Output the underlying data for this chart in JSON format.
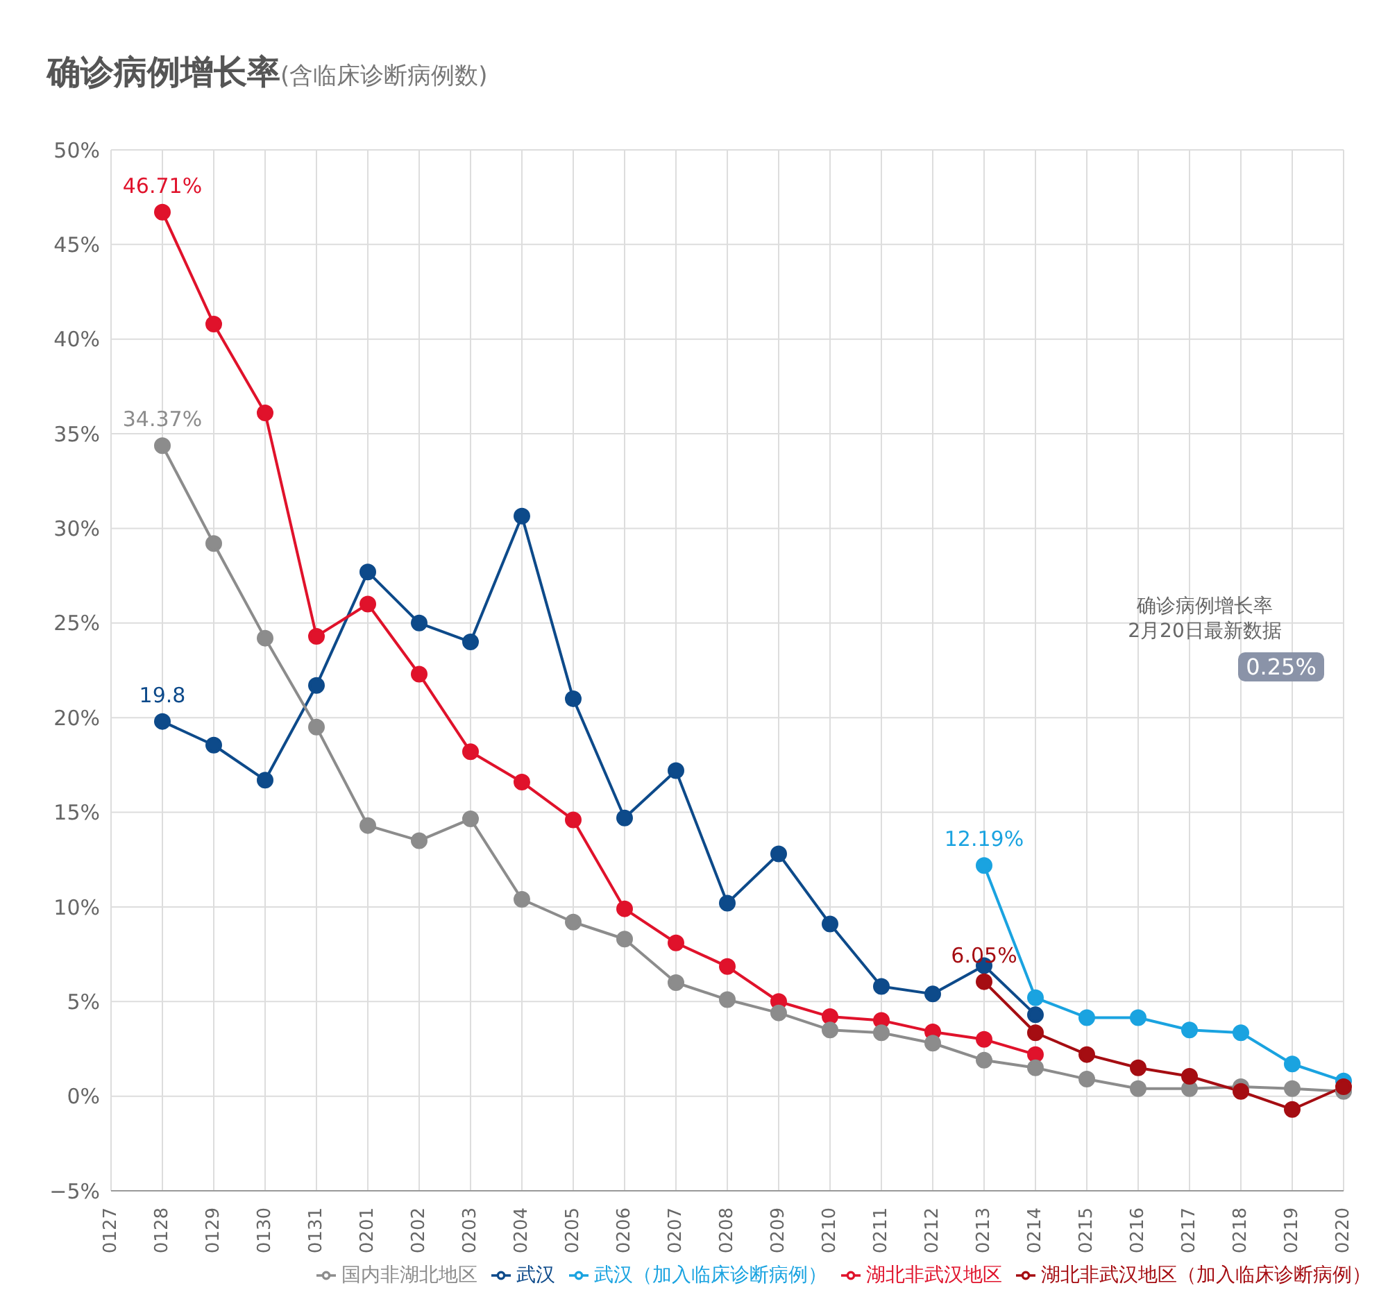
{
  "chart_data": {
    "type": "line",
    "title": "确诊病例增长率",
    "subtitle": "(含临床诊断病例数)",
    "categories": [
      "0127",
      "0128",
      "0129",
      "0130",
      "0131",
      "0201",
      "0202",
      "0203",
      "0204",
      "0205",
      "0206",
      "0207",
      "0208",
      "0209",
      "0210",
      "0211",
      "0212",
      "0213",
      "0214",
      "0215",
      "0216",
      "0217",
      "0218",
      "0219",
      "0220"
    ],
    "series": [
      {
        "name": "武汉",
        "color": "#0d4a8a",
        "values": [
          null,
          19.8,
          18.55,
          16.7,
          21.7,
          27.7,
          25.0,
          24.0,
          30.65,
          21.0,
          14.7,
          17.2,
          10.2,
          12.8,
          9.1,
          5.8,
          5.4,
          6.9,
          4.3,
          null,
          null,
          null,
          null,
          null,
          null
        ],
        "value_labels": [
          null,
          "19.8",
          null,
          null,
          null,
          null,
          null,
          null,
          null,
          null,
          null,
          null,
          null,
          null,
          null,
          null,
          null,
          null,
          null,
          null,
          null,
          null,
          null,
          null,
          null
        ]
      },
      {
        "name": "湖北非武汉地区",
        "color": "#e0122b",
        "values": [
          null,
          46.71,
          40.8,
          36.1,
          24.3,
          26.0,
          22.3,
          18.2,
          16.6,
          14.6,
          9.9,
          8.1,
          6.85,
          5.0,
          4.2,
          4.0,
          3.4,
          3.0,
          2.2,
          null,
          null,
          null,
          null,
          null,
          null
        ],
        "value_labels": [
          null,
          "46.71%",
          null,
          null,
          null,
          null,
          null,
          null,
          null,
          null,
          null,
          null,
          null,
          null,
          null,
          null,
          null,
          null,
          null,
          null,
          null,
          null,
          null,
          null,
          null
        ]
      },
      {
        "name": "国内非湖北地区",
        "color": "#8c8c8c",
        "values": [
          null,
          34.37,
          29.2,
          24.2,
          19.5,
          14.3,
          13.5,
          14.65,
          10.4,
          9.2,
          8.3,
          6.0,
          5.1,
          4.4,
          3.5,
          3.35,
          2.8,
          1.9,
          1.5,
          0.9,
          0.4,
          0.4,
          0.5,
          0.4,
          0.25
        ],
        "value_labels": [
          null,
          "34.37%",
          null,
          null,
          null,
          null,
          null,
          null,
          null,
          null,
          null,
          null,
          null,
          null,
          null,
          null,
          null,
          null,
          null,
          null,
          null,
          null,
          null,
          null,
          null
        ]
      },
      {
        "name": "武汉（加入临床诊断病例）",
        "color": "#1aa3e0",
        "values": [
          null,
          null,
          null,
          null,
          null,
          null,
          null,
          null,
          null,
          null,
          null,
          null,
          null,
          null,
          null,
          null,
          null,
          12.19,
          5.2,
          4.15,
          4.15,
          3.5,
          3.35,
          1.7,
          0.8
        ],
        "value_labels": [
          null,
          null,
          null,
          null,
          null,
          null,
          null,
          null,
          null,
          null,
          null,
          null,
          null,
          null,
          null,
          null,
          null,
          "12.19%",
          null,
          null,
          null,
          null,
          null,
          null,
          null
        ]
      },
      {
        "name": "湖北非武汉地区（加入临床诊断病例）",
        "color": "#a50d12",
        "values": [
          null,
          null,
          null,
          null,
          null,
          null,
          null,
          null,
          null,
          null,
          null,
          null,
          null,
          null,
          null,
          null,
          null,
          6.05,
          3.35,
          2.2,
          1.5,
          1.05,
          0.25,
          -0.7,
          0.5
        ],
        "value_labels": [
          null,
          null,
          null,
          null,
          null,
          null,
          null,
          null,
          null,
          null,
          null,
          null,
          null,
          null,
          null,
          null,
          null,
          "6.05%",
          null,
          null,
          null,
          null,
          null,
          null,
          null
        ]
      }
    ],
    "ylim": [
      -5,
      50
    ],
    "yticks": [
      {
        "value": -5,
        "label": "−5%"
      },
      {
        "value": 0,
        "label": "0%"
      },
      {
        "value": 5,
        "label": "5%"
      },
      {
        "value": 10,
        "label": "10%"
      },
      {
        "value": 15,
        "label": "15%"
      },
      {
        "value": 20,
        "label": "20%"
      },
      {
        "value": 25,
        "label": "25%"
      },
      {
        "value": 30,
        "label": "30%"
      },
      {
        "value": 35,
        "label": "35%"
      },
      {
        "value": 40,
        "label": "40%"
      },
      {
        "value": 45,
        "label": "45%"
      },
      {
        "value": 50,
        "label": "50%"
      }
    ],
    "grid": true,
    "legend": "bottom",
    "marker": "circle",
    "line_style": "solid",
    "annotations": [
      "确诊病例增长率",
      "2月20日最新数据",
      "0.25%"
    ]
  }
}
